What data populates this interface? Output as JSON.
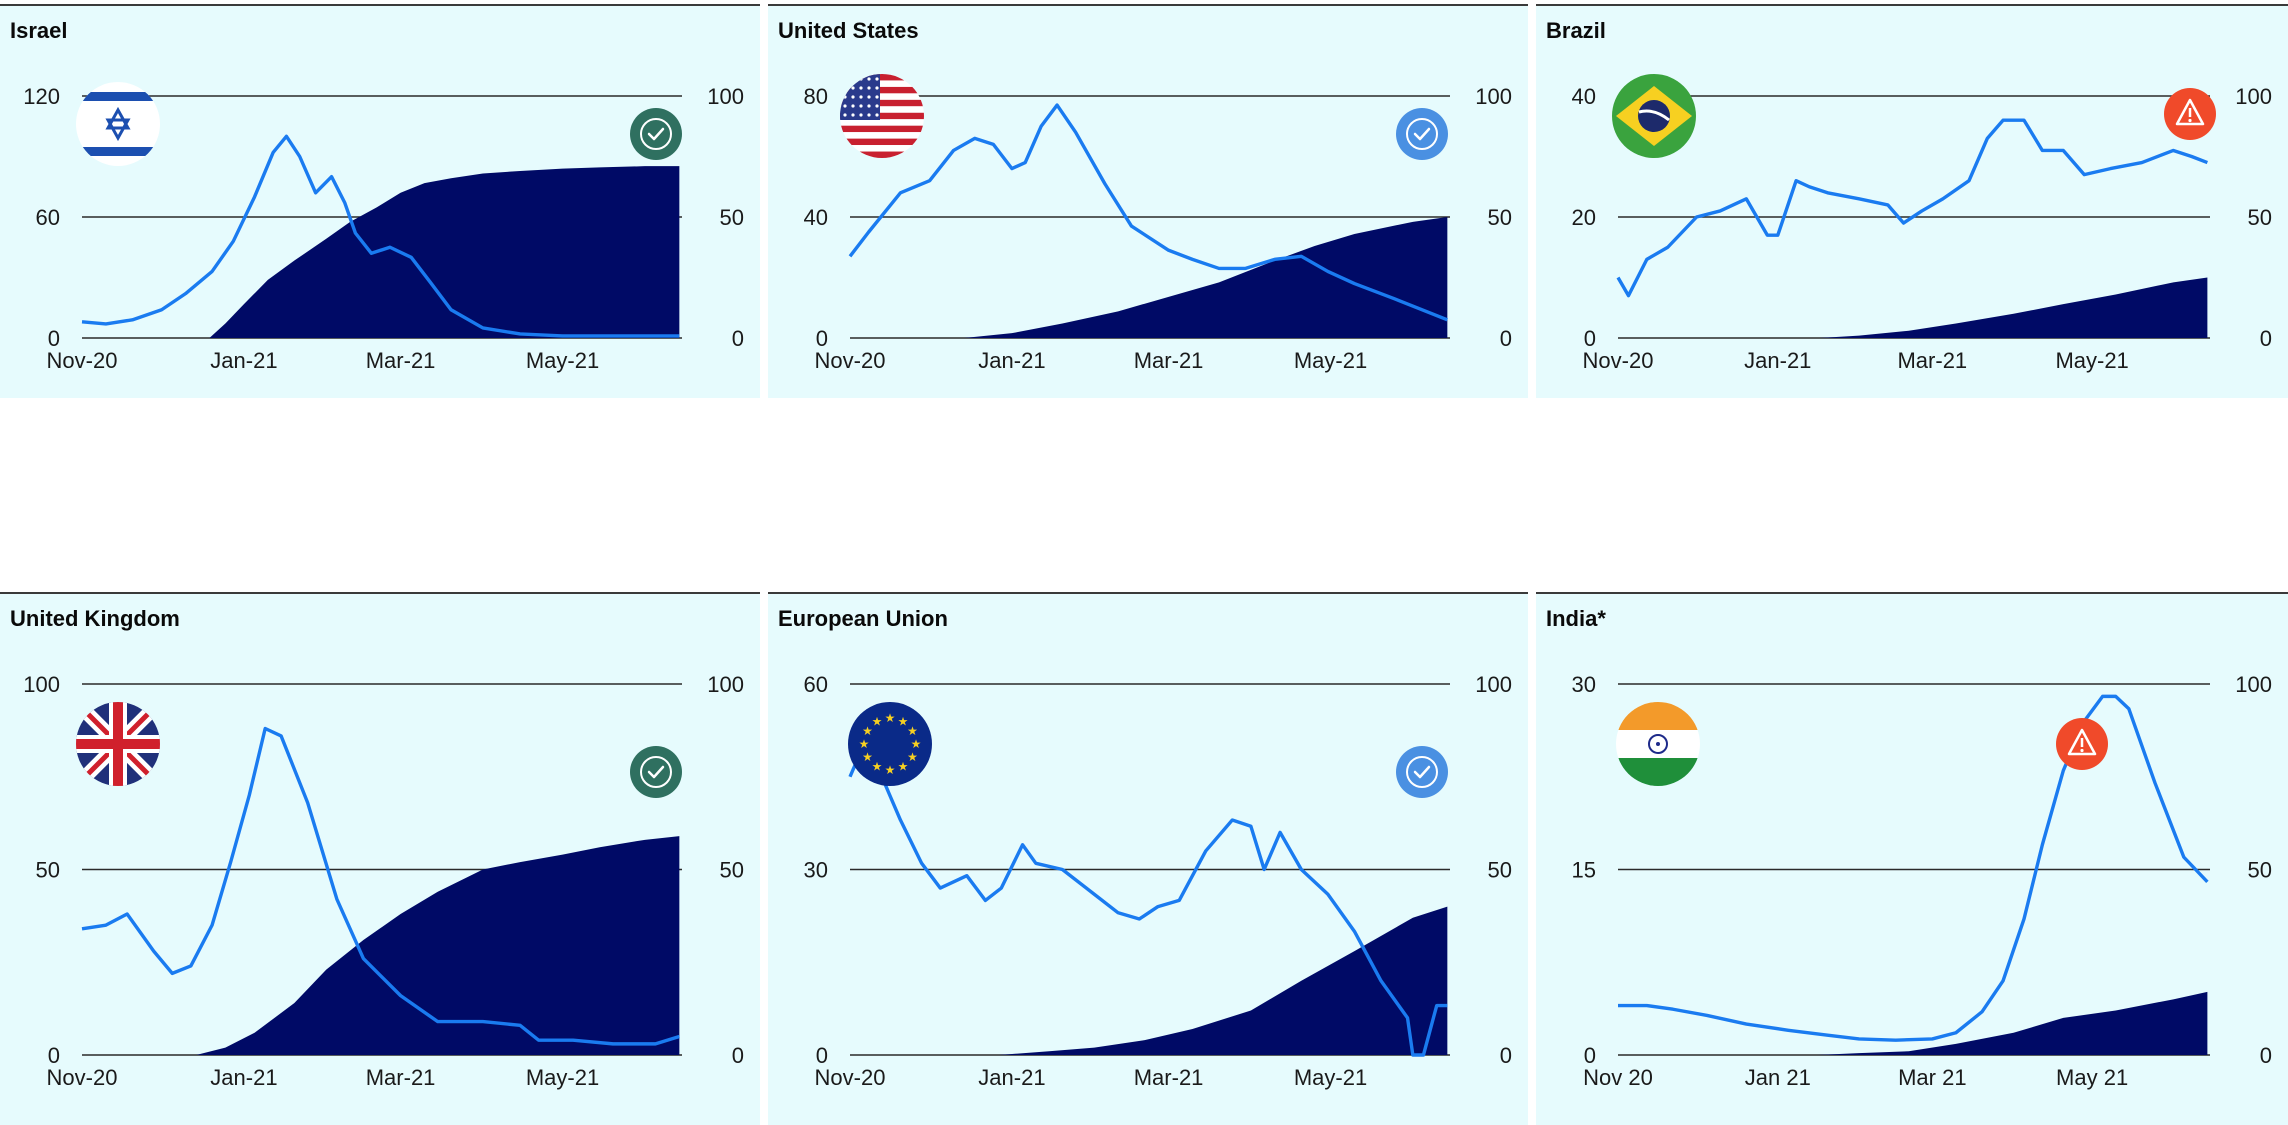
{
  "colors": {
    "background": "#e6fbfd",
    "cases_line": "#1a7bf0",
    "vaccination_fill": "#000a66",
    "status_ok_dark": "#2f7060",
    "status_ok_light": "#4a90e2",
    "status_warning": "#f04a2a"
  },
  "panels": [
    {
      "title": "Israel",
      "flag": "israel-flag",
      "status": "check-dark",
      "left_ticks": [
        "0",
        "60",
        "120"
      ],
      "right_ticks": [
        "0",
        "50",
        "100"
      ],
      "x_ticks": [
        "Nov-20",
        "Jan-21",
        "Mar-21",
        "May-21"
      ]
    },
    {
      "title": "United States",
      "flag": "us-flag",
      "status": "check-light",
      "left_ticks": [
        "0",
        "40",
        "80"
      ],
      "right_ticks": [
        "0",
        "50",
        "100"
      ],
      "x_ticks": [
        "Nov-20",
        "Jan-21",
        "Mar-21",
        "May-21"
      ]
    },
    {
      "title": "Brazil",
      "flag": "brazil-flag",
      "status": "warning",
      "left_ticks": [
        "0",
        "20",
        "40"
      ],
      "right_ticks": [
        "0",
        "50",
        "100"
      ],
      "x_ticks": [
        "Nov-20",
        "Jan-21",
        "Mar-21",
        "May-21"
      ]
    },
    {
      "title": "United Kingdom",
      "flag": "uk-flag",
      "status": "check-dark",
      "left_ticks": [
        "0",
        "50",
        "100"
      ],
      "right_ticks": [
        "0",
        "50",
        "100"
      ],
      "x_ticks": [
        "Nov-20",
        "Jan-21",
        "Mar-21",
        "May-21"
      ]
    },
    {
      "title": "European Union",
      "flag": "eu-flag",
      "status": "check-light",
      "left_ticks": [
        "0",
        "30",
        "60"
      ],
      "right_ticks": [
        "0",
        "50",
        "100"
      ],
      "x_ticks": [
        "Nov-20",
        "Jan-21",
        "Mar-21",
        "May-21"
      ]
    },
    {
      "title": "India*",
      "flag": "india-flag",
      "status": "warning",
      "left_ticks": [
        "0",
        "15",
        "30"
      ],
      "right_ticks": [
        "0",
        "50",
        "100"
      ],
      "x_ticks": [
        "Nov 20",
        "Jan 21",
        "Mar 21",
        "May 21"
      ]
    }
  ],
  "chart_data": [
    {
      "type": "area",
      "title": "Israel",
      "x_range": [
        "2020-11-01",
        "2021-06-15"
      ],
      "ylim_left": [
        0,
        120
      ],
      "ylim_right": [
        0,
        100
      ],
      "grid": true,
      "series": [
        {
          "axis": "left",
          "style": "line",
          "x": [
            "2020-11-01",
            "2020-11-10",
            "2020-11-20",
            "2020-12-01",
            "2020-12-10",
            "2020-12-20",
            "2020-12-28",
            "2021-01-05",
            "2021-01-12",
            "2021-01-17",
            "2021-01-22",
            "2021-01-28",
            "2021-02-03",
            "2021-02-08",
            "2021-02-12",
            "2021-02-18",
            "2021-02-25",
            "2021-03-05",
            "2021-03-12",
            "2021-03-20",
            "2021-04-01",
            "2021-04-15",
            "2021-05-01",
            "2021-05-20",
            "2021-06-14"
          ],
          "values": [
            8,
            7,
            9,
            14,
            22,
            33,
            48,
            70,
            92,
            100,
            90,
            72,
            80,
            67,
            52,
            42,
            45,
            40,
            28,
            14,
            5,
            2,
            1,
            1,
            1
          ]
        },
        {
          "axis": "right",
          "style": "area",
          "x": [
            "2020-12-19",
            "2020-12-25",
            "2021-01-01",
            "2021-01-10",
            "2021-01-20",
            "2021-02-01",
            "2021-02-10",
            "2021-02-20",
            "2021-03-01",
            "2021-03-10",
            "2021-03-20",
            "2021-04-01",
            "2021-04-15",
            "2021-05-01",
            "2021-05-15",
            "2021-06-01",
            "2021-06-14"
          ],
          "values": [
            0,
            6,
            14,
            24,
            32,
            41,
            48,
            54,
            60,
            64,
            66,
            68,
            69,
            70,
            70.5,
            71,
            71
          ]
        }
      ]
    },
    {
      "type": "area",
      "title": "United States",
      "x_range": [
        "2020-11-01",
        "2021-06-15"
      ],
      "ylim_left": [
        0,
        80
      ],
      "ylim_right": [
        0,
        100
      ],
      "grid": true,
      "series": [
        {
          "axis": "left",
          "style": "line",
          "x": [
            "2020-11-01",
            "2020-11-08",
            "2020-11-20",
            "2020-12-01",
            "2020-12-10",
            "2020-12-18",
            "2020-12-25",
            "2021-01-01",
            "2021-01-06",
            "2021-01-12",
            "2021-01-18",
            "2021-01-25",
            "2021-02-05",
            "2021-02-15",
            "2021-03-01",
            "2021-03-10",
            "2021-03-20",
            "2021-03-30",
            "2021-04-10",
            "2021-04-20",
            "2021-04-30",
            "2021-05-10",
            "2021-05-25",
            "2021-06-14"
          ],
          "values": [
            27,
            35,
            48,
            52,
            62,
            66,
            64,
            56,
            58,
            70,
            77,
            68,
            51,
            37,
            29,
            26,
            23,
            23,
            26,
            27,
            22,
            18,
            13,
            6
          ]
        },
        {
          "axis": "right",
          "style": "area",
          "x": [
            "2020-12-14",
            "2021-01-01",
            "2021-01-20",
            "2021-02-10",
            "2021-03-01",
            "2021-03-20",
            "2021-04-10",
            "2021-04-25",
            "2021-05-10",
            "2021-06-01",
            "2021-06-14"
          ],
          "values": [
            0,
            2,
            6,
            11,
            17,
            23,
            32,
            38,
            43,
            48,
            50
          ]
        }
      ]
    },
    {
      "type": "area",
      "title": "Brazil",
      "x_range": [
        "2020-11-01",
        "2021-06-15"
      ],
      "ylim_left": [
        0,
        40
      ],
      "ylim_right": [
        0,
        100
      ],
      "grid": true,
      "series": [
        {
          "axis": "left",
          "style": "line",
          "x": [
            "2020-11-01",
            "2020-11-05",
            "2020-11-12",
            "2020-11-20",
            "2020-12-01",
            "2020-12-10",
            "2020-12-20",
            "2020-12-28",
            "2021-01-01",
            "2021-01-08",
            "2021-01-13",
            "2021-01-20",
            "2021-02-01",
            "2021-02-12",
            "2021-02-18",
            "2021-02-25",
            "2021-03-05",
            "2021-03-15",
            "2021-03-22",
            "2021-03-28",
            "2021-04-05",
            "2021-04-12",
            "2021-04-20",
            "2021-04-28",
            "2021-05-08",
            "2021-05-20",
            "2021-06-01",
            "2021-06-08",
            "2021-06-14"
          ],
          "values": [
            10,
            7,
            13,
            15,
            20,
            21,
            23,
            17,
            17,
            26,
            25,
            24,
            23,
            22,
            19,
            21,
            23,
            26,
            33,
            36,
            36,
            31,
            31,
            27,
            28,
            29,
            31,
            30,
            29
          ]
        },
        {
          "axis": "right",
          "style": "area",
          "x": [
            "2021-01-17",
            "2021-02-01",
            "2021-02-20",
            "2021-03-10",
            "2021-04-01",
            "2021-04-20",
            "2021-05-10",
            "2021-06-01",
            "2021-06-14"
          ],
          "values": [
            0,
            1,
            3,
            6,
            10,
            14,
            18,
            23,
            25
          ]
        }
      ]
    },
    {
      "type": "area",
      "title": "United Kingdom",
      "x_range": [
        "2020-11-01",
        "2021-06-15"
      ],
      "ylim_left": [
        0,
        100
      ],
      "ylim_right": [
        0,
        100
      ],
      "grid": true,
      "series": [
        {
          "axis": "left",
          "style": "line",
          "x": [
            "2020-11-01",
            "2020-11-10",
            "2020-11-18",
            "2020-11-28",
            "2020-12-05",
            "2020-12-12",
            "2020-12-20",
            "2020-12-27",
            "2021-01-03",
            "2021-01-09",
            "2021-01-15",
            "2021-01-25",
            "2021-02-05",
            "2021-02-15",
            "2021-03-01",
            "2021-03-15",
            "2021-04-01",
            "2021-04-15",
            "2021-04-22",
            "2021-05-05",
            "2021-05-20",
            "2021-06-05",
            "2021-06-14"
          ],
          "values": [
            34,
            35,
            38,
            28,
            22,
            24,
            35,
            52,
            70,
            88,
            86,
            68,
            42,
            26,
            16,
            9,
            9,
            8,
            4,
            4,
            3,
            3,
            5
          ]
        },
        {
          "axis": "right",
          "style": "area",
          "x": [
            "2020-12-14",
            "2020-12-25",
            "2021-01-05",
            "2021-01-20",
            "2021-02-01",
            "2021-02-15",
            "2021-03-01",
            "2021-03-15",
            "2021-04-01",
            "2021-04-15",
            "2021-05-01",
            "2021-05-15",
            "2021-06-01",
            "2021-06-14"
          ],
          "values": [
            0,
            2,
            6,
            14,
            23,
            31,
            38,
            44,
            50,
            52,
            54,
            56,
            58,
            59
          ]
        }
      ]
    },
    {
      "type": "area",
      "title": "European Union",
      "x_range": [
        "2020-11-01",
        "2021-06-15"
      ],
      "ylim_left": [
        0,
        60
      ],
      "ylim_right": [
        0,
        100
      ],
      "grid": true,
      "series": [
        {
          "axis": "left",
          "style": "line",
          "x": [
            "2020-11-01",
            "2020-11-05",
            "2020-11-12",
            "2020-11-20",
            "2020-11-28",
            "2020-12-05",
            "2020-12-15",
            "2020-12-22",
            "2020-12-28",
            "2021-01-05",
            "2021-01-10",
            "2021-01-20",
            "2021-02-01",
            "2021-02-10",
            "2021-02-18",
            "2021-02-25",
            "2021-03-05",
            "2021-03-15",
            "2021-03-25",
            "2021-04-01",
            "2021-04-06",
            "2021-04-12",
            "2021-04-20",
            "2021-04-30",
            "2021-05-10",
            "2021-05-20",
            "2021-05-30",
            "2021-06-01",
            "2021-06-05",
            "2021-06-10",
            "2021-06-14"
          ],
          "values": [
            45,
            49,
            46,
            38,
            31,
            27,
            29,
            25,
            27,
            34,
            31,
            30,
            26,
            23,
            22,
            24,
            25,
            33,
            38,
            37,
            30,
            36,
            30,
            26,
            20,
            12,
            6,
            0,
            0,
            8,
            8
          ]
        },
        {
          "axis": "right",
          "style": "area",
          "x": [
            "2020-12-27",
            "2021-01-15",
            "2021-02-01",
            "2021-02-20",
            "2021-03-10",
            "2021-04-01",
            "2021-04-20",
            "2021-05-10",
            "2021-06-01",
            "2021-06-14"
          ],
          "values": [
            0,
            1,
            2,
            4,
            7,
            12,
            20,
            28,
            37,
            40
          ]
        }
      ]
    },
    {
      "type": "area",
      "title": "India*",
      "x_range": [
        "2020-11-01",
        "2021-06-15"
      ],
      "ylim_left": [
        0,
        30
      ],
      "ylim_right": [
        0,
        100
      ],
      "grid": true,
      "series": [
        {
          "axis": "left",
          "style": "line",
          "x": [
            "2020-11-01",
            "2020-11-12",
            "2020-11-22",
            "2020-12-05",
            "2020-12-20",
            "2021-01-05",
            "2021-01-20",
            "2021-02-01",
            "2021-02-15",
            "2021-03-01",
            "2021-03-10",
            "2021-03-20",
            "2021-03-28",
            "2021-04-05",
            "2021-04-12",
            "2021-04-20",
            "2021-04-28",
            "2021-05-05",
            "2021-05-10",
            "2021-05-15",
            "2021-05-25",
            "2021-06-05",
            "2021-06-14"
          ],
          "values": [
            4,
            4,
            3.7,
            3.2,
            2.5,
            2,
            1.6,
            1.3,
            1.2,
            1.3,
            1.8,
            3.5,
            6,
            11,
            17,
            23,
            27,
            29,
            29,
            28,
            22,
            16,
            14
          ]
        },
        {
          "axis": "right",
          "style": "area",
          "x": [
            "2021-01-16",
            "2021-02-01",
            "2021-02-20",
            "2021-03-10",
            "2021-04-01",
            "2021-04-20",
            "2021-05-10",
            "2021-06-01",
            "2021-06-14"
          ],
          "values": [
            0,
            0.5,
            1,
            3,
            6,
            10,
            12,
            15,
            17
          ]
        }
      ]
    }
  ]
}
